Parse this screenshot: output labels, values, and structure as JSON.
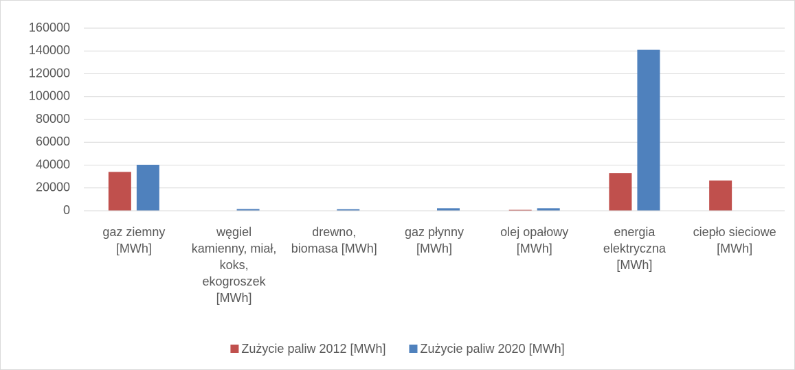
{
  "chart_data": {
    "type": "bar",
    "categories": [
      "gaz ziemny [MWh]",
      "węgiel kamienny, miał, koks, ekogroszek [MWh]",
      "drewno, biomasa [MWh]",
      "gaz płynny [MWh]",
      "olej opałowy [MWh]",
      "energia elektryczna [MWh]",
      "ciepło sieciowe [MWh]"
    ],
    "series": [
      {
        "name": "Zużycie paliw 2012 [MWh]",
        "color": "#c0504d",
        "values": [
          34000,
          300,
          100,
          100,
          800,
          33000,
          26500
        ]
      },
      {
        "name": "Zużycie paliw 2020 [MWh]",
        "color": "#4f81bd",
        "values": [
          40300,
          1500,
          1300,
          2200,
          2200,
          141000,
          300
        ]
      }
    ],
    "ylim": [
      0,
      160000
    ],
    "yticks": [
      0,
      20000,
      40000,
      60000,
      80000,
      100000,
      120000,
      140000,
      160000
    ],
    "grid": true,
    "legend": "bottom"
  }
}
